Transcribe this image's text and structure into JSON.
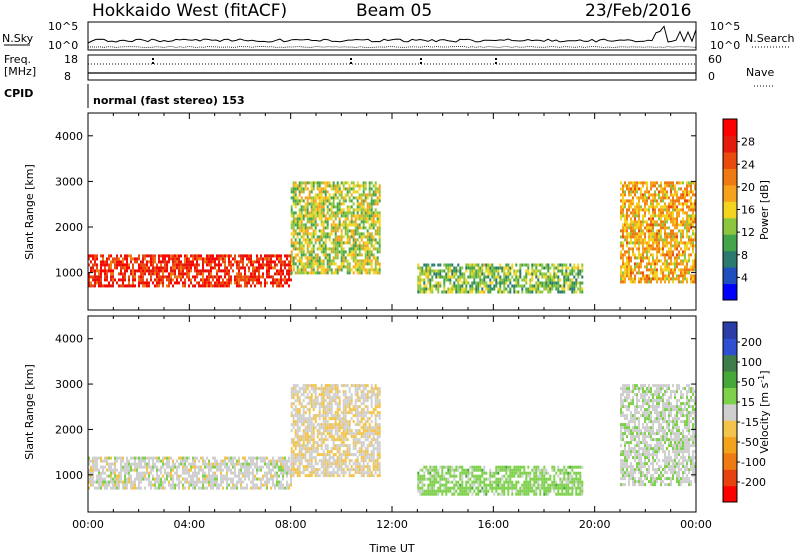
{
  "header": {
    "radar_title": "Hokkaido West (fitACF)",
    "beam_label": "Beam 05",
    "date_label": "23/Feb/2016"
  },
  "noise_panel": {
    "left_label": "N.Sky",
    "right_label": "N.Search",
    "left_ticks": [
      "10^5",
      "10^0"
    ],
    "right_ticks": [
      "10^5",
      "10^0"
    ]
  },
  "freq_panel": {
    "left_label_1": "Freq.",
    "left_label_2": "[MHz]",
    "right_label": "Nave",
    "left_ticks": [
      "18",
      "8"
    ],
    "right_ticks": [
      "60",
      "0"
    ]
  },
  "cpid": {
    "label": "CPID",
    "mode_text": "normal (fast stereo) 153"
  },
  "colors": {
    "power": [
      "#0000ff",
      "#1f4fbf",
      "#2b7a6f",
      "#44a44a",
      "#8cc63f",
      "#f3d51f",
      "#f7a21b",
      "#f07a12",
      "#ea4a0d",
      "#e31a0c",
      "#ff0000"
    ],
    "velocity": [
      "#2b3ea8",
      "#2f4fd1",
      "#3e7c4a",
      "#47a83a",
      "#7dd14b",
      "#cfcfcf",
      "#f2c44b",
      "#f2a21b",
      "#f07a12",
      "#e7410f",
      "#ff0000"
    ]
  },
  "chart_data": [
    {
      "type": "heatmap",
      "name": "power",
      "xlabel": "",
      "ylabel": "Slant Range [km]",
      "x_range_hours": [
        0,
        24
      ],
      "ylim": [
        180,
        4500
      ],
      "y_ticks": [
        1000,
        2000,
        3000,
        4000
      ],
      "colorbar": {
        "label": "Power [dB]",
        "ticks": [
          "4",
          "8",
          "12",
          "16",
          "20",
          "24",
          "28"
        ],
        "range": [
          0,
          31
        ]
      },
      "echo_regions": [
        {
          "t_start": 0.0,
          "t_end": 8.0,
          "range_low": 700,
          "range_high": 1400,
          "value": 26
        },
        {
          "t_start": 8.0,
          "t_end": 11.5,
          "range_low": 1000,
          "range_high": 3000,
          "value": 14
        },
        {
          "t_start": 13.0,
          "t_end": 19.5,
          "range_low": 600,
          "range_high": 1200,
          "value": 12
        },
        {
          "t_start": 21.0,
          "t_end": 24.0,
          "range_low": 800,
          "range_high": 3000,
          "value": 18
        }
      ]
    },
    {
      "type": "heatmap",
      "name": "velocity",
      "xlabel": "Time UT",
      "ylabel": "Slant Range [km]",
      "x_range_hours": [
        0,
        24
      ],
      "x_ticks": [
        "00:00",
        "04:00",
        "08:00",
        "12:00",
        "16:00",
        "20:00",
        "00:00"
      ],
      "ylim": [
        180,
        4500
      ],
      "y_ticks": [
        1000,
        2000,
        3000,
        4000
      ],
      "colorbar": {
        "label": "Velocity [m s",
        "label_exponent": "-1",
        "label_close": "]",
        "ticks": [
          "200",
          "100",
          "50",
          "15",
          "-15",
          "-50",
          "-100",
          "-200"
        ],
        "range": [
          -250,
          250
        ]
      },
      "echo_regions": [
        {
          "t_start": 0.0,
          "t_end": 8.0,
          "range_low": 700,
          "range_high": 1400,
          "value": 0
        },
        {
          "t_start": 8.0,
          "t_end": 11.5,
          "range_low": 1000,
          "range_high": 3000,
          "value": -15
        },
        {
          "t_start": 13.0,
          "t_end": 19.5,
          "range_low": 600,
          "range_high": 1200,
          "value": 40
        },
        {
          "t_start": 21.0,
          "t_end": 24.0,
          "range_low": 800,
          "range_high": 3000,
          "value": 10
        }
      ]
    }
  ]
}
